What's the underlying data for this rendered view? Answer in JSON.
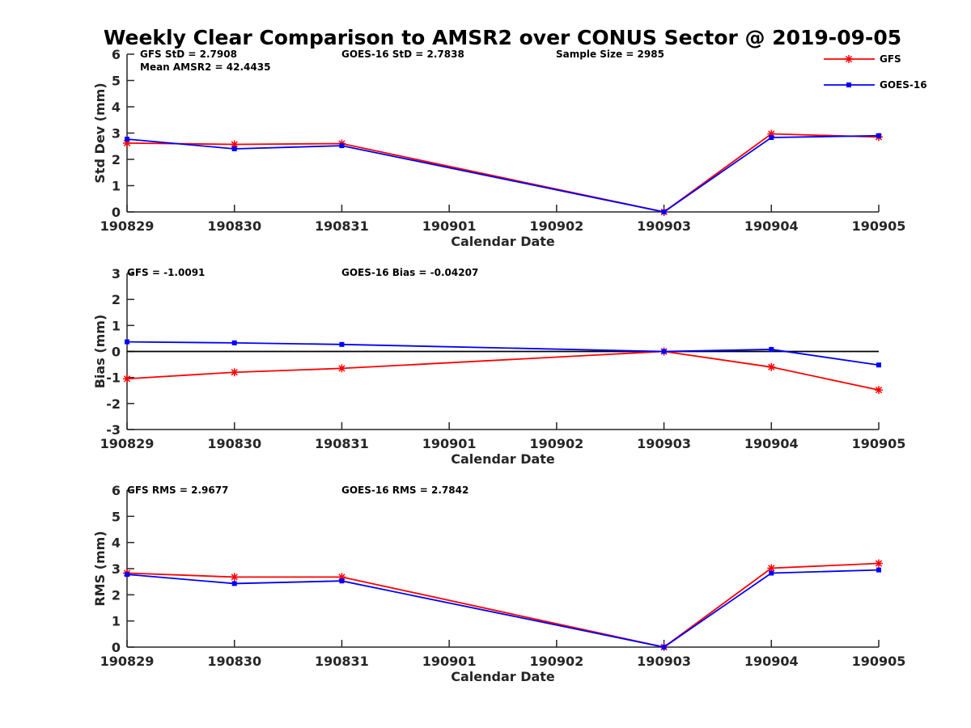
{
  "title": "Weekly Clear Comparison to AMSR2 over CONUS Sector @ 2019-09-05",
  "colors": {
    "gfs": "#ff0000",
    "goes": "#0000ff",
    "axis": "#262626",
    "zero_line": "#000000"
  },
  "legend": {
    "placement": "top-right",
    "entries": [
      "GFS",
      "GOES-16"
    ]
  },
  "chart_data": [
    {
      "type": "line",
      "title": "",
      "xlabel": "Calendar Date",
      "ylabel": "Std Dev (mm)",
      "categories": [
        "190829",
        "190830",
        "190831",
        "190901",
        "190902",
        "190903",
        "190904",
        "190905"
      ],
      "ylim": [
        0,
        6
      ],
      "yticks": [
        0,
        1,
        2,
        3,
        4,
        5,
        6
      ],
      "grid": false,
      "annotations": [
        "GFS StD = 2.7908",
        "Mean AMSR2 = 42.4435",
        "GOES-16 StD = 2.7838",
        "Sample Size = 2985"
      ],
      "series": [
        {
          "name": "GFS",
          "color": "#ff0000",
          "marker": "asterisk",
          "points": [
            [
              "190829",
              2.62
            ],
            [
              "190830",
              2.57
            ],
            [
              "190831",
              2.6
            ],
            [
              "190903",
              0.0
            ],
            [
              "190904",
              2.97
            ],
            [
              "190905",
              2.85
            ]
          ]
        },
        {
          "name": "GOES-16",
          "color": "#0000ff",
          "marker": "square",
          "points": [
            [
              "190829",
              2.77
            ],
            [
              "190830",
              2.4
            ],
            [
              "190831",
              2.52
            ],
            [
              "190903",
              0.0
            ],
            [
              "190904",
              2.83
            ],
            [
              "190905",
              2.9
            ]
          ]
        }
      ]
    },
    {
      "type": "line",
      "title": "",
      "xlabel": "Calendar Date",
      "ylabel": "Bias (mm)",
      "categories": [
        "190829",
        "190830",
        "190831",
        "190901",
        "190902",
        "190903",
        "190904",
        "190905"
      ],
      "ylim": [
        -3,
        3
      ],
      "yticks": [
        -3,
        -2,
        -1,
        0,
        1,
        2,
        3
      ],
      "grid": false,
      "zero_line": true,
      "annotations": [
        "GFS = -1.0091",
        "GOES-16 Bias  = -0.04207"
      ],
      "series": [
        {
          "name": "GFS",
          "color": "#ff0000",
          "marker": "asterisk",
          "points": [
            [
              "190829",
              -1.05
            ],
            [
              "190830",
              -0.8
            ],
            [
              "190831",
              -0.65
            ],
            [
              "190903",
              0.0
            ],
            [
              "190904",
              -0.6
            ],
            [
              "190905",
              -1.48
            ]
          ]
        },
        {
          "name": "GOES-16",
          "color": "#0000ff",
          "marker": "square",
          "points": [
            [
              "190829",
              0.37
            ],
            [
              "190830",
              0.33
            ],
            [
              "190831",
              0.27
            ],
            [
              "190903",
              0.0
            ],
            [
              "190904",
              0.08
            ],
            [
              "190905",
              -0.52
            ]
          ]
        }
      ]
    },
    {
      "type": "line",
      "title": "",
      "xlabel": "Calendar Date",
      "ylabel": "RMS (mm)",
      "categories": [
        "190829",
        "190830",
        "190831",
        "190901",
        "190902",
        "190903",
        "190904",
        "190905"
      ],
      "ylim": [
        0,
        6
      ],
      "yticks": [
        0,
        1,
        2,
        3,
        4,
        5,
        6
      ],
      "grid": false,
      "annotations": [
        "GFS RMS = 2.9677",
        "GOES-16 RMS = 2.7842"
      ],
      "series": [
        {
          "name": "GFS",
          "color": "#ff0000",
          "marker": "asterisk",
          "points": [
            [
              "190829",
              2.83
            ],
            [
              "190830",
              2.68
            ],
            [
              "190831",
              2.68
            ],
            [
              "190903",
              0.0
            ],
            [
              "190904",
              3.02
            ],
            [
              "190905",
              3.2
            ]
          ]
        },
        {
          "name": "GOES-16",
          "color": "#0000ff",
          "marker": "square",
          "points": [
            [
              "190829",
              2.78
            ],
            [
              "190830",
              2.43
            ],
            [
              "190831",
              2.53
            ],
            [
              "190903",
              0.0
            ],
            [
              "190904",
              2.83
            ],
            [
              "190905",
              2.95
            ]
          ]
        }
      ]
    }
  ]
}
